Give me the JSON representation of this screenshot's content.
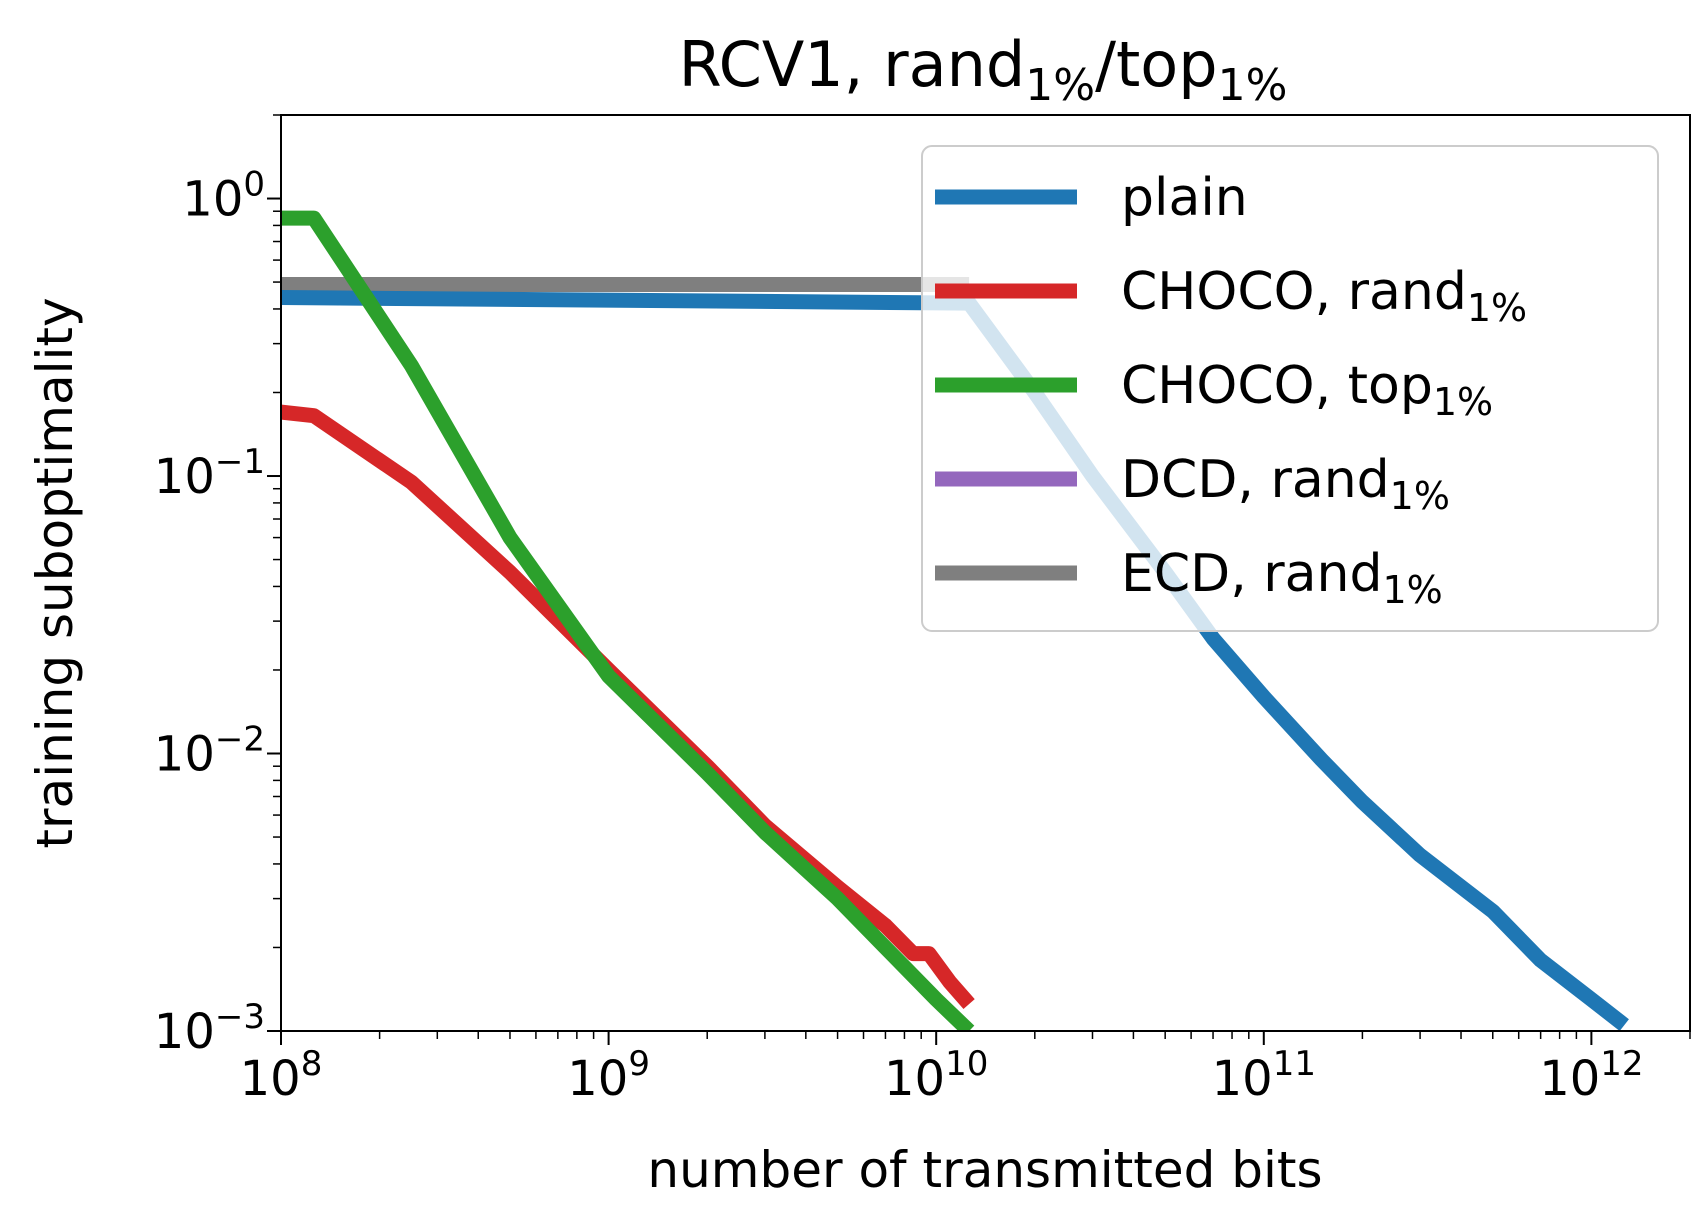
{
  "chart_data": {
    "type": "line",
    "title": {
      "base": "RCV1, rand",
      "sub1": "1%",
      "mid": "/top",
      "sub2": "1%"
    },
    "xlabel": "number of transmitted bits",
    "ylabel": "training suboptimality",
    "xscale": "log",
    "yscale": "log",
    "xlim": [
      100000000.0,
      2000000000000.0
    ],
    "ylim": [
      0.001,
      2.0
    ],
    "grid": false,
    "legend_position": "top-right",
    "x_ticks": [
      {
        "value": 100000000.0,
        "base": "10",
        "exp": "8"
      },
      {
        "value": 1000000000.0,
        "base": "10",
        "exp": "9"
      },
      {
        "value": 10000000000.0,
        "base": "10",
        "exp": "10"
      },
      {
        "value": 100000000000.0,
        "base": "10",
        "exp": "11"
      },
      {
        "value": 1000000000000.0,
        "base": "10",
        "exp": "12"
      }
    ],
    "y_ticks": [
      {
        "value": 1,
        "base": "10",
        "exp": "0"
      },
      {
        "value": 0.1,
        "base": "10",
        "exp": "−1"
      },
      {
        "value": 0.01,
        "base": "10",
        "exp": "−2"
      },
      {
        "value": 0.001,
        "base": "10",
        "exp": "−3"
      }
    ],
    "series": [
      {
        "name": "plain",
        "label": {
          "text": "plain",
          "sub": ""
        },
        "color": "#1f77b4",
        "x": [
          100000000.0,
          12600000000.0,
          20000000000.0,
          30000000000.0,
          50000000000.0,
          70000000000.0,
          100000000000.0,
          150000000000.0,
          200000000000.0,
          300000000000.0,
          500000000000.0,
          700000000000.0,
          1000000000000.0,
          1260000000000.0
        ],
        "y": [
          0.44,
          0.42,
          0.2,
          0.1,
          0.045,
          0.026,
          0.016,
          0.0095,
          0.0067,
          0.0043,
          0.0027,
          0.0018,
          0.0013,
          0.00105
        ]
      },
      {
        "name": "CHOCO, rand1%",
        "label": {
          "text": "CHOCO,  rand",
          "sub": "1%"
        },
        "color": "#d62728",
        "x": [
          100000000.0,
          126000000.0,
          250000000.0,
          500000000.0,
          1000000000.0,
          2000000000.0,
          3000000000.0,
          5000000000.0,
          7000000000.0,
          8500000000.0,
          9500000000.0,
          11000000000.0,
          12600000000.0
        ],
        "y": [
          0.17,
          0.165,
          0.095,
          0.045,
          0.02,
          0.009,
          0.0055,
          0.0033,
          0.0024,
          0.0019,
          0.0019,
          0.0015,
          0.00125
        ]
      },
      {
        "name": "CHOCO, top1%",
        "label": {
          "text": "CHOCO,  top",
          "sub": "1%"
        },
        "color": "#2ca02c",
        "x": [
          100000000.0,
          126000000.0,
          250000000.0,
          500000000.0,
          1000000000.0,
          2000000000.0,
          3000000000.0,
          5000000000.0,
          7000000000.0,
          10000000000.0,
          12600000000.0
        ],
        "y": [
          0.85,
          0.85,
          0.25,
          0.06,
          0.019,
          0.0085,
          0.0052,
          0.003,
          0.002,
          0.0013,
          0.001
        ]
      },
      {
        "name": "DCD, rand1%",
        "label": {
          "text": "DCD,  rand",
          "sub": "1%"
        },
        "color": "#9467bd",
        "x": [],
        "y": []
      },
      {
        "name": "ECD, rand1%",
        "label": {
          "text": "ECD,  rand",
          "sub": "1%"
        },
        "color": "#7f7f7f",
        "x": [
          100000000.0,
          12600000000.0
        ],
        "y": [
          0.49,
          0.49
        ]
      }
    ]
  }
}
